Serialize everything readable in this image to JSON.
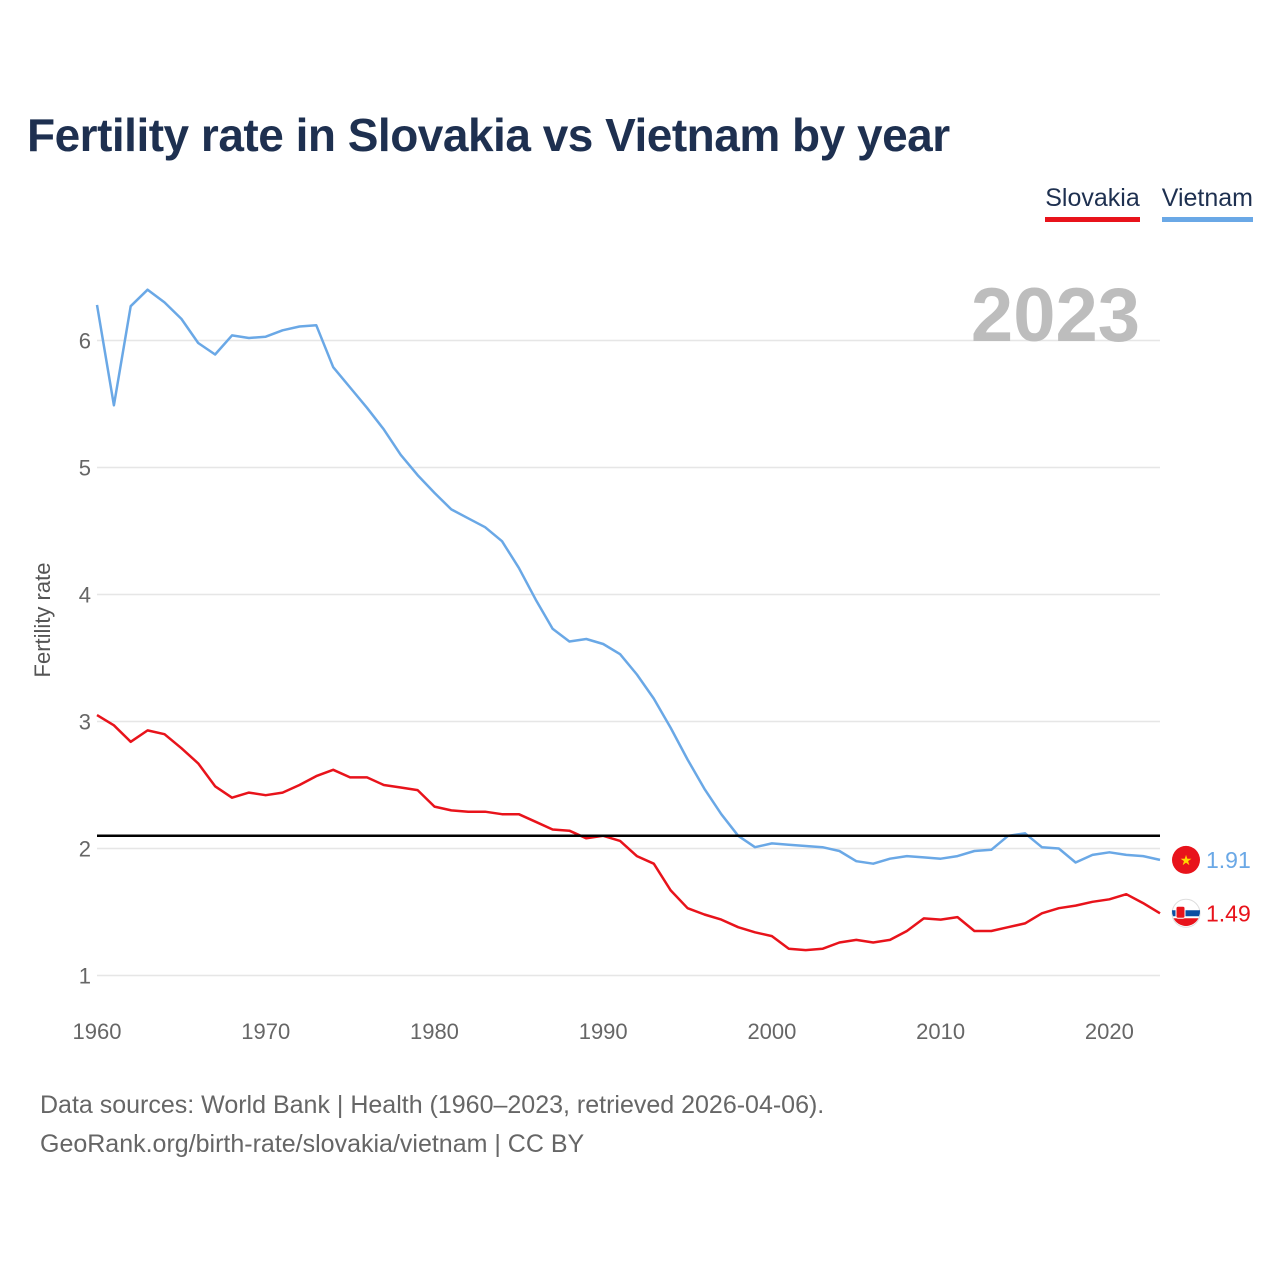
{
  "title": "Fertility rate in Slovakia vs Vietnam by year",
  "legend": [
    {
      "name": "Slovakia",
      "color": "#e8131b"
    },
    {
      "name": "Vietnam",
      "color": "#6aa8e6"
    }
  ],
  "footer": {
    "line1": "Data sources: World Bank | Health (1960–2023, retrieved 2026-04-06).",
    "line2": "GeoRank.org/birth-rate/slovakia/vietnam | CC BY"
  },
  "chart_data": {
    "type": "line",
    "title": "Fertility rate in Slovakia vs Vietnam by year",
    "ylabel": "Fertility rate",
    "xlabel": "",
    "current_year_label": "2023",
    "xlim": [
      1960,
      2023
    ],
    "ylim": [
      0.72,
      6.85
    ],
    "yticks": [
      1,
      2,
      3,
      4,
      5,
      6
    ],
    "xticks": [
      1960,
      1970,
      1980,
      1990,
      2000,
      2010,
      2020
    ],
    "reference_line": {
      "y": 2.1,
      "color": "#000000"
    },
    "x": [
      1960,
      1961,
      1962,
      1963,
      1964,
      1965,
      1966,
      1967,
      1968,
      1969,
      1970,
      1971,
      1972,
      1973,
      1974,
      1975,
      1976,
      1977,
      1978,
      1979,
      1980,
      1981,
      1982,
      1983,
      1984,
      1985,
      1986,
      1987,
      1988,
      1989,
      1990,
      1991,
      1992,
      1993,
      1994,
      1995,
      1996,
      1997,
      1998,
      1999,
      2000,
      2001,
      2002,
      2003,
      2004,
      2005,
      2006,
      2007,
      2008,
      2009,
      2010,
      2011,
      2012,
      2013,
      2014,
      2015,
      2016,
      2017,
      2018,
      2019,
      2020,
      2021,
      2022,
      2023
    ],
    "series": [
      {
        "name": "Slovakia",
        "color": "#e8131b",
        "end_label": "1.49",
        "flag": "slovakia-flag",
        "values": [
          3.05,
          2.97,
          2.84,
          2.93,
          2.9,
          2.79,
          2.67,
          2.49,
          2.4,
          2.44,
          2.42,
          2.44,
          2.5,
          2.57,
          2.62,
          2.56,
          2.56,
          2.5,
          2.48,
          2.46,
          2.33,
          2.3,
          2.29,
          2.29,
          2.27,
          2.27,
          2.21,
          2.15,
          2.14,
          2.08,
          2.1,
          2.06,
          1.94,
          1.88,
          1.67,
          1.53,
          1.48,
          1.44,
          1.38,
          1.34,
          1.31,
          1.21,
          1.2,
          1.21,
          1.26,
          1.28,
          1.26,
          1.28,
          1.35,
          1.45,
          1.44,
          1.46,
          1.35,
          1.35,
          1.38,
          1.41,
          1.49,
          1.53,
          1.55,
          1.58,
          1.6,
          1.64,
          1.57,
          1.49
        ]
      },
      {
        "name": "Vietnam",
        "color": "#6aa8e6",
        "end_label": "1.91",
        "flag": "vietnam-flag",
        "values": [
          6.28,
          5.49,
          6.27,
          6.4,
          6.3,
          6.17,
          5.98,
          5.89,
          6.04,
          6.02,
          6.03,
          6.08,
          6.11,
          6.12,
          5.79,
          5.63,
          5.47,
          5.3,
          5.1,
          4.94,
          4.8,
          4.67,
          4.6,
          4.53,
          4.42,
          4.21,
          3.96,
          3.73,
          3.63,
          3.65,
          3.61,
          3.53,
          3.37,
          3.18,
          2.95,
          2.7,
          2.47,
          2.27,
          2.1,
          2.01,
          2.04,
          2.03,
          2.02,
          2.01,
          1.98,
          1.9,
          1.88,
          1.92,
          1.94,
          1.93,
          1.92,
          1.94,
          1.98,
          1.99,
          2.1,
          2.12,
          2.01,
          2.0,
          1.89,
          1.95,
          1.97,
          1.95,
          1.94,
          1.91
        ]
      }
    ]
  }
}
